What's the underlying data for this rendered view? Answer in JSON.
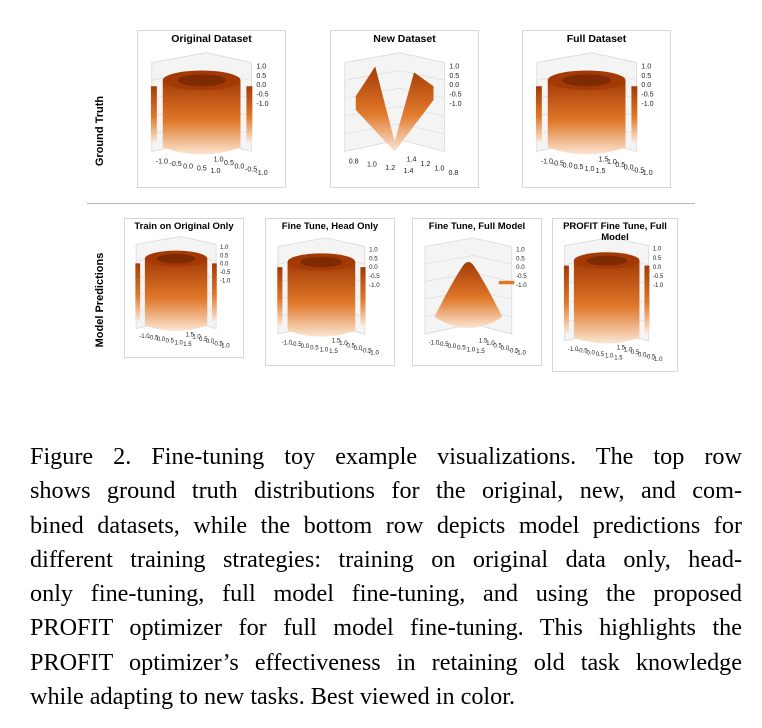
{
  "figure": {
    "row_labels": {
      "top": "Ground Truth",
      "bottom": "Model Predictions"
    },
    "panels_top": [
      {
        "title": "Original Dataset",
        "surface": "ring",
        "z_ticks": [
          "1.0",
          "0.5",
          "0.0",
          "-0.5",
          "-1.0"
        ],
        "x_ticks": [
          "-1.0",
          "-0.5",
          "0.0",
          "0.5",
          "1.0"
        ],
        "y_ticks": [
          "1.0",
          "0.5",
          "0.0",
          "-0.5",
          "-1.0"
        ]
      },
      {
        "title": "New Dataset",
        "surface": "saddle",
        "z_ticks": [
          "1.0",
          "0.5",
          "0.0",
          "-0.5",
          "-1.0"
        ],
        "x_ticks": [
          "0.8",
          "1.0",
          "1.2",
          "1.4"
        ],
        "y_ticks": [
          "1.4",
          "1.2",
          "1.0",
          "0.8"
        ]
      },
      {
        "title": "Full Dataset",
        "surface": "ring",
        "z_ticks": [
          "1.0",
          "0.5",
          "0.0",
          "-0.5",
          "-1.0"
        ],
        "x_ticks": [
          "-1.0",
          "-0.5",
          "0.0",
          "0.5",
          "1.0",
          "1.5"
        ],
        "y_ticks": [
          "1.5",
          "1.0",
          "0.5",
          "0.0",
          "-0.5",
          "-1.0"
        ]
      }
    ],
    "panels_bottom": [
      {
        "title": "Train on Original Only",
        "surface": "ring",
        "z_ticks": [
          "1.0",
          "0.5",
          "0.0",
          "-0.5",
          "-1.0"
        ],
        "x_ticks": [
          "-1.0",
          "-0.5",
          "0.0",
          "0.5",
          "1.0",
          "1.5"
        ],
        "y_ticks": [
          "1.5",
          "1.0",
          "0.5",
          "0.0",
          "-0.5",
          "-1.0"
        ]
      },
      {
        "title": "Fine Tune, Head Only",
        "surface": "ring",
        "z_ticks": [
          "1.0",
          "0.5",
          "0.0",
          "-0.5",
          "-1.0"
        ],
        "x_ticks": [
          "-1.0",
          "-0.5",
          "0.0",
          "0.5",
          "1.0",
          "1.5"
        ],
        "y_ticks": [
          "1.5",
          "1.0",
          "0.5",
          "0.0",
          "-0.5",
          "-1.0"
        ]
      },
      {
        "title": "Fine Tune, Full Model",
        "surface": "bump",
        "z_ticks": [
          "1.0",
          "0.5",
          "0.0",
          "-0.5",
          "-1.0"
        ],
        "x_ticks": [
          "-1.0",
          "-0.5",
          "0.0",
          "0.5",
          "1.0",
          "1.5"
        ],
        "y_ticks": [
          "1.5",
          "1.0",
          "0.5",
          "0.0",
          "-0.5",
          "-1.0"
        ]
      },
      {
        "title": "PROFIT Fine Tune, Full Model",
        "surface": "ring",
        "z_ticks": [
          "1.0",
          "0.5",
          "0.0",
          "-0.5",
          "-1.0"
        ],
        "x_ticks": [
          "-1.0",
          "-0.5",
          "0.0",
          "0.5",
          "1.0",
          "1.5"
        ],
        "y_ticks": [
          "1.5",
          "1.0",
          "0.5",
          "0.0",
          "-0.5",
          "-1.0"
        ]
      }
    ]
  },
  "caption": {
    "lines": [
      "Figure 2.  Fine-tuning toy example visualizations.  The top row",
      "shows ground truth distributions for the original, new, and com-",
      "bined datasets, while the bottom row depicts model predictions for",
      "different training strategies: training on original data only, head-",
      "only fine-tuning, full model fine-tuning, and using the proposed",
      "PROFIT optimizer for full model fine-tuning. This highlights the",
      "PROFIT optimizer’s effectiveness in retaining old task knowledge",
      "while adapting to new tasks. Best viewed in color."
    ]
  },
  "colors": {
    "surface_dark": "#a33a06",
    "surface_mid": "#e0782a",
    "surface_light": "#fbe6d2",
    "grid": "#d9d9d9"
  }
}
